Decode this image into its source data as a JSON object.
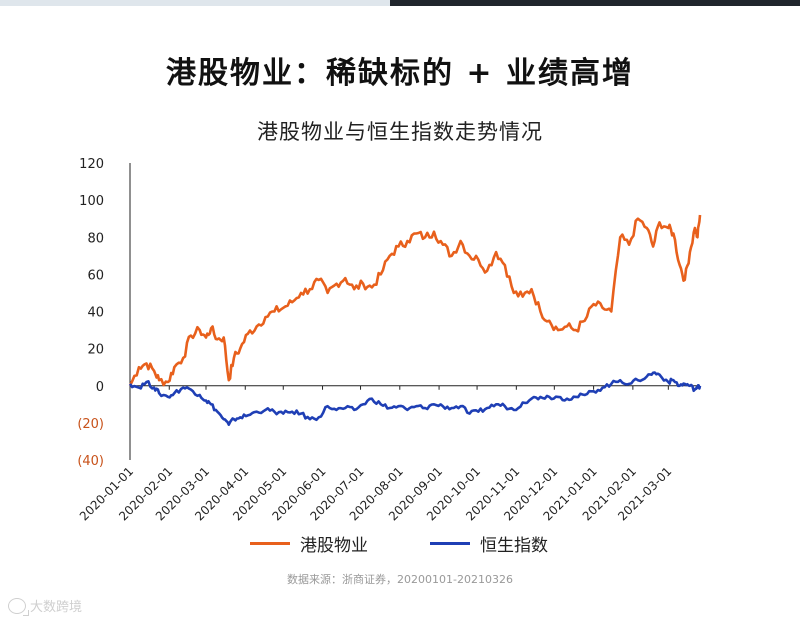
{
  "page": {
    "title": "港股物业：稀缺标的 + 业绩高增",
    "source": "数据来源：浙商证券，20200101-20210326",
    "watermark": "大数跨境"
  },
  "chart_data": {
    "type": "line",
    "title": "港股物业与恒生指数走势情况",
    "xlabel": "",
    "ylabel": "",
    "ylim": [
      -40,
      120
    ],
    "yticks": [
      {
        "value": 120,
        "label": "120"
      },
      {
        "value": 100,
        "label": "100"
      },
      {
        "value": 80,
        "label": "80"
      },
      {
        "value": 60,
        "label": "60"
      },
      {
        "value": 40,
        "label": "40"
      },
      {
        "value": 20,
        "label": "20"
      },
      {
        "value": 0,
        "label": "0"
      },
      {
        "value": -20,
        "label": "(20)"
      },
      {
        "value": -40,
        "label": "(40)"
      }
    ],
    "xlim": [
      "2020-01-01",
      "2021-03-26"
    ],
    "xticks": [
      "2020-01-01",
      "2020-02-01",
      "2020-03-01",
      "2020-04-01",
      "2020-05-01",
      "2020-06-01",
      "2020-07-01",
      "2020-08-01",
      "2020-09-01",
      "2020-10-01",
      "2020-11-01",
      "2020-12-01",
      "2021-01-01",
      "2021-02-01",
      "2021-03-01"
    ],
    "grid": false,
    "legend": "bottom",
    "colors": {
      "property": "#e8601c",
      "hsi": "#1f3fb5",
      "negative_label": "#c8521a",
      "axis": "#222222"
    },
    "series": [
      {
        "name": "港股物业",
        "color": "#e8601c",
        "points": [
          [
            "2020-01-01",
            0
          ],
          [
            "2020-01-08",
            10
          ],
          [
            "2020-01-14",
            12
          ],
          [
            "2020-01-20",
            8
          ],
          [
            "2020-01-24",
            3
          ],
          [
            "2020-01-31",
            2
          ],
          [
            "2020-02-05",
            10
          ],
          [
            "2020-02-12",
            15
          ],
          [
            "2020-02-18",
            27
          ],
          [
            "2020-02-25",
            30
          ],
          [
            "2020-03-01",
            26
          ],
          [
            "2020-03-05",
            31
          ],
          [
            "2020-03-10",
            25
          ],
          [
            "2020-03-15",
            26
          ],
          [
            "2020-03-19",
            3
          ],
          [
            "2020-03-23",
            15
          ],
          [
            "2020-03-28",
            20
          ],
          [
            "2020-04-03",
            28
          ],
          [
            "2020-04-10",
            32
          ],
          [
            "2020-04-17",
            37
          ],
          [
            "2020-04-24",
            40
          ],
          [
            "2020-05-01",
            42
          ],
          [
            "2020-05-08",
            45
          ],
          [
            "2020-05-15",
            50
          ],
          [
            "2020-05-22",
            52
          ],
          [
            "2020-05-29",
            57
          ],
          [
            "2020-06-05",
            50
          ],
          [
            "2020-06-12",
            55
          ],
          [
            "2020-06-19",
            58
          ],
          [
            "2020-06-26",
            52
          ],
          [
            "2020-07-03",
            55
          ],
          [
            "2020-07-10",
            53
          ],
          [
            "2020-07-17",
            60
          ],
          [
            "2020-07-24",
            70
          ],
          [
            "2020-07-31",
            75
          ],
          [
            "2020-08-07",
            78
          ],
          [
            "2020-08-14",
            82
          ],
          [
            "2020-08-21",
            80
          ],
          [
            "2020-08-28",
            83
          ],
          [
            "2020-09-04",
            76
          ],
          [
            "2020-09-11",
            70
          ],
          [
            "2020-09-18",
            78
          ],
          [
            "2020-09-25",
            70
          ],
          [
            "2020-10-02",
            68
          ],
          [
            "2020-10-09",
            62
          ],
          [
            "2020-10-16",
            72
          ],
          [
            "2020-10-23",
            65
          ],
          [
            "2020-10-30",
            50
          ],
          [
            "2020-11-06",
            48
          ],
          [
            "2020-11-13",
            52
          ],
          [
            "2020-11-20",
            40
          ],
          [
            "2020-11-27",
            35
          ],
          [
            "2020-12-04",
            30
          ],
          [
            "2020-12-11",
            32
          ],
          [
            "2020-12-18",
            30
          ],
          [
            "2020-12-25",
            35
          ],
          [
            "2021-01-01",
            44
          ],
          [
            "2021-01-08",
            42
          ],
          [
            "2021-01-15",
            40
          ],
          [
            "2021-01-22",
            80
          ],
          [
            "2021-01-29",
            76
          ],
          [
            "2021-02-05",
            90
          ],
          [
            "2021-02-12",
            85
          ],
          [
            "2021-02-17",
            75
          ],
          [
            "2021-02-22",
            88
          ],
          [
            "2021-03-01",
            85
          ],
          [
            "2021-03-05",
            82
          ],
          [
            "2021-03-10",
            65
          ],
          [
            "2021-03-14",
            57
          ],
          [
            "2021-03-18",
            72
          ],
          [
            "2021-03-22",
            85
          ],
          [
            "2021-03-24",
            80
          ],
          [
            "2021-03-26",
            92
          ]
        ]
      },
      {
        "name": "恒生指数",
        "color": "#1f3fb5",
        "points": [
          [
            "2020-01-01",
            1
          ],
          [
            "2020-01-08",
            -1
          ],
          [
            "2020-01-14",
            2
          ],
          [
            "2020-01-20",
            -1
          ],
          [
            "2020-01-24",
            -4
          ],
          [
            "2020-01-31",
            -6
          ],
          [
            "2020-02-05",
            -4
          ],
          [
            "2020-02-12",
            -1
          ],
          [
            "2020-02-18",
            -2
          ],
          [
            "2020-02-25",
            -5
          ],
          [
            "2020-03-01",
            -8
          ],
          [
            "2020-03-05",
            -10
          ],
          [
            "2020-03-10",
            -14
          ],
          [
            "2020-03-15",
            -18
          ],
          [
            "2020-03-19",
            -21
          ],
          [
            "2020-03-23",
            -18
          ],
          [
            "2020-03-28",
            -17
          ],
          [
            "2020-04-03",
            -16
          ],
          [
            "2020-04-10",
            -14
          ],
          [
            "2020-04-17",
            -13
          ],
          [
            "2020-04-24",
            -14
          ],
          [
            "2020-05-01",
            -15
          ],
          [
            "2020-05-08",
            -14
          ],
          [
            "2020-05-15",
            -15
          ],
          [
            "2020-05-22",
            -18
          ],
          [
            "2020-05-29",
            -17
          ],
          [
            "2020-06-05",
            -11
          ],
          [
            "2020-06-12",
            -13
          ],
          [
            "2020-06-19",
            -12
          ],
          [
            "2020-06-26",
            -13
          ],
          [
            "2020-07-03",
            -10
          ],
          [
            "2020-07-10",
            -7
          ],
          [
            "2020-07-17",
            -10
          ],
          [
            "2020-07-24",
            -12
          ],
          [
            "2020-07-31",
            -11
          ],
          [
            "2020-08-07",
            -13
          ],
          [
            "2020-08-14",
            -11
          ],
          [
            "2020-08-21",
            -12
          ],
          [
            "2020-08-28",
            -10
          ],
          [
            "2020-09-04",
            -11
          ],
          [
            "2020-09-11",
            -12
          ],
          [
            "2020-09-18",
            -11
          ],
          [
            "2020-09-25",
            -15
          ],
          [
            "2020-10-02",
            -14
          ],
          [
            "2020-10-09",
            -12
          ],
          [
            "2020-10-16",
            -10
          ],
          [
            "2020-10-23",
            -11
          ],
          [
            "2020-10-30",
            -13
          ],
          [
            "2020-11-06",
            -9
          ],
          [
            "2020-11-13",
            -7
          ],
          [
            "2020-11-20",
            -6
          ],
          [
            "2020-11-27",
            -6
          ],
          [
            "2020-12-04",
            -6
          ],
          [
            "2020-12-11",
            -7
          ],
          [
            "2020-12-18",
            -6
          ],
          [
            "2020-12-25",
            -5
          ],
          [
            "2021-01-01",
            -3
          ],
          [
            "2021-01-08",
            -1
          ],
          [
            "2021-01-15",
            1
          ],
          [
            "2021-01-22",
            3
          ],
          [
            "2021-01-29",
            1
          ],
          [
            "2021-02-05",
            3
          ],
          [
            "2021-02-12",
            5
          ],
          [
            "2021-02-17",
            7
          ],
          [
            "2021-02-22",
            6
          ],
          [
            "2021-03-01",
            2
          ],
          [
            "2021-03-05",
            3
          ],
          [
            "2021-03-10",
            0
          ],
          [
            "2021-03-14",
            1
          ],
          [
            "2021-03-18",
            0
          ],
          [
            "2021-03-22",
            -2
          ],
          [
            "2021-03-24",
            -1
          ],
          [
            "2021-03-26",
            0
          ]
        ]
      }
    ]
  }
}
